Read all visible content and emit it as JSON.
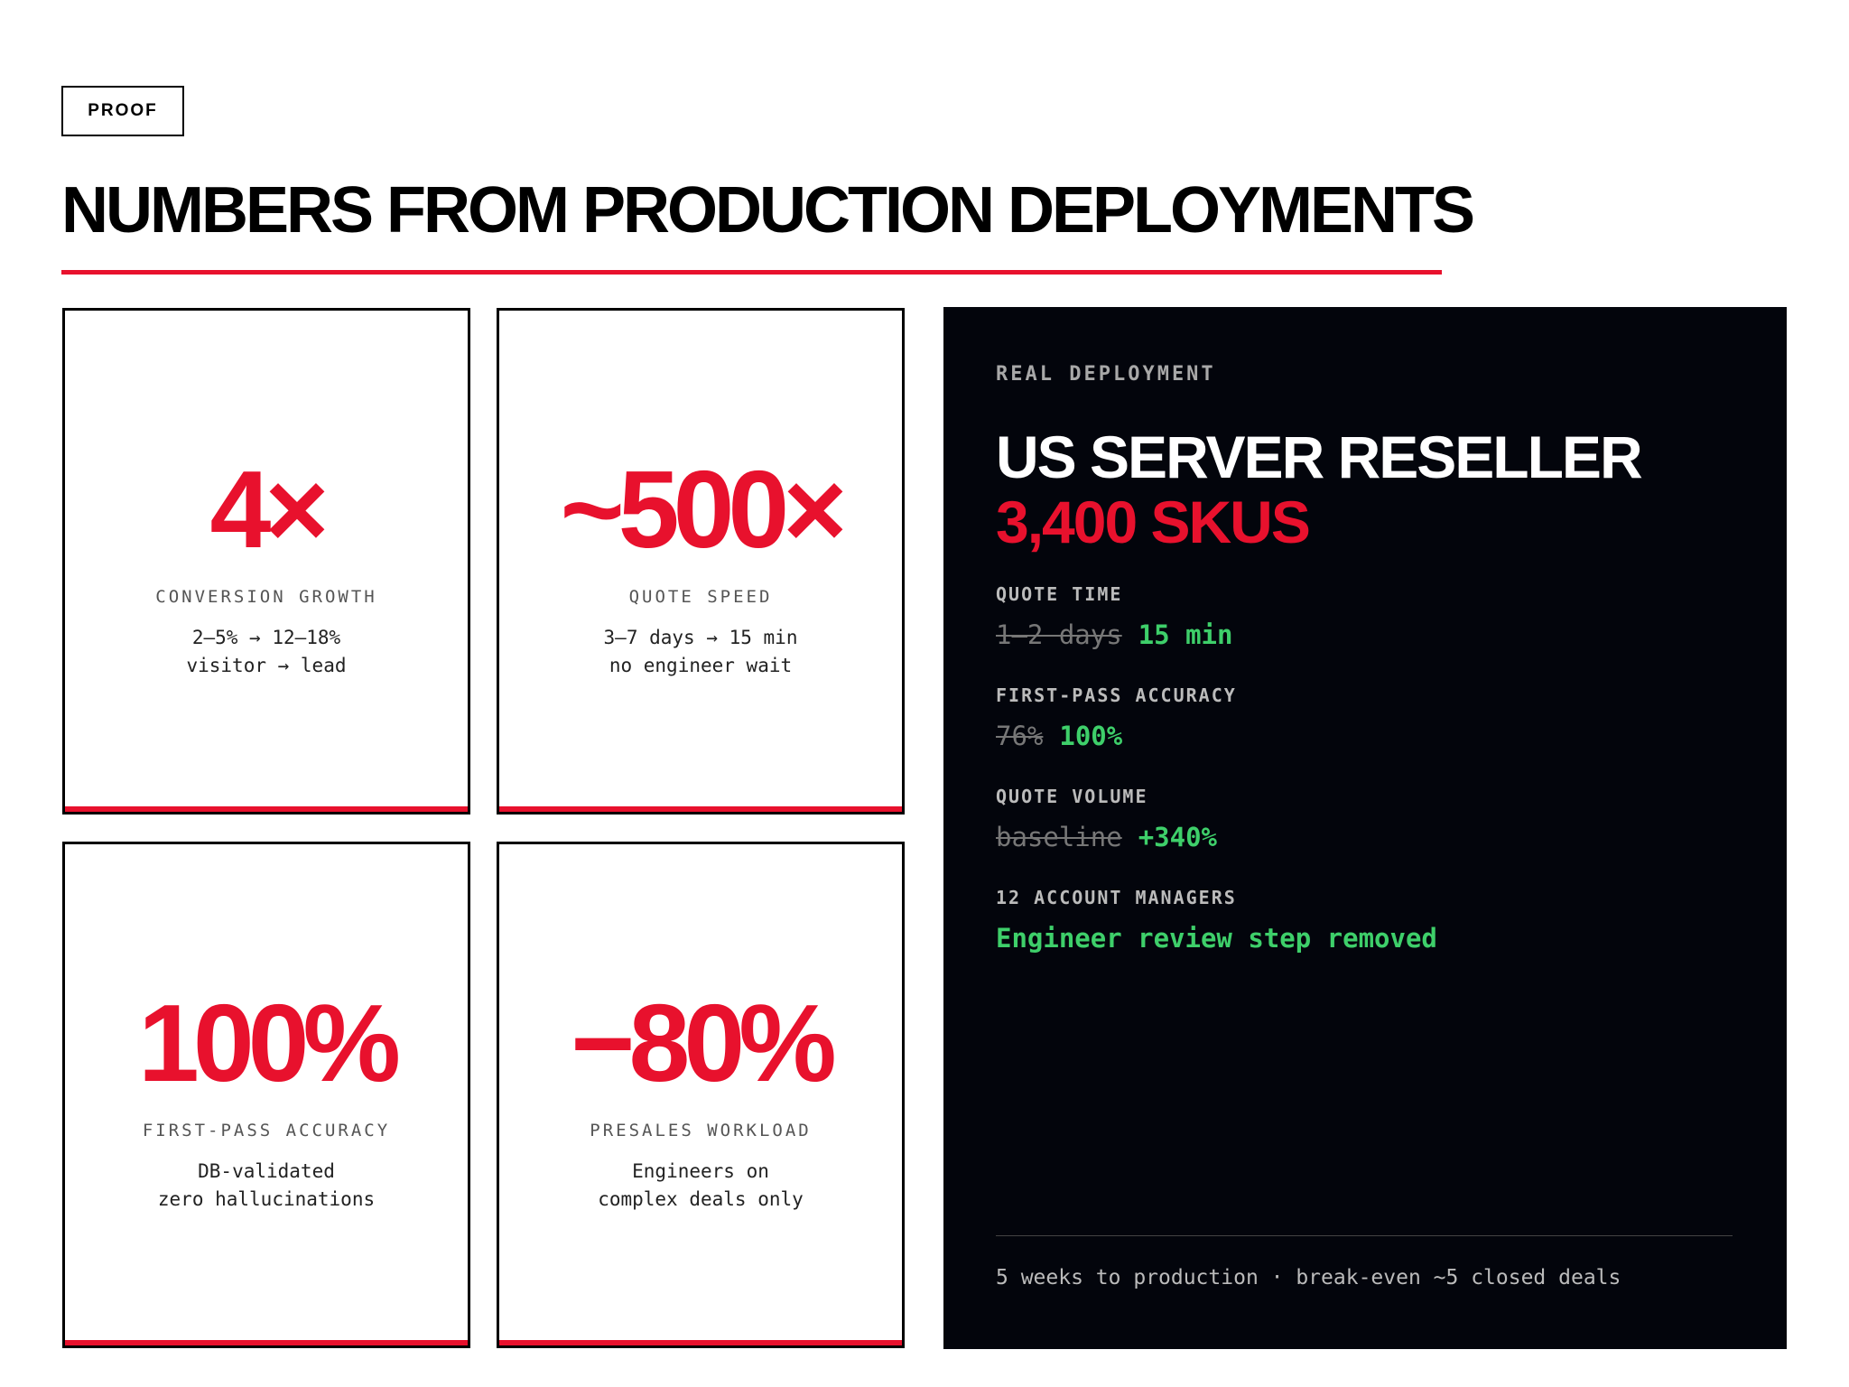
{
  "header": {
    "badge": "PROOF",
    "title": "NUMBERS FROM PRODUCTION DEPLOYMENTS"
  },
  "cards": [
    {
      "value": "4×",
      "label": "CONVERSION GROWTH",
      "lines": [
        "2–5% → 12–18%",
        "visitor → lead"
      ]
    },
    {
      "value": "~500×",
      "label": "QUOTE SPEED",
      "lines": [
        "3–7 days → 15 min",
        "no engineer wait"
      ]
    },
    {
      "value": "100%",
      "label": "FIRST-PASS ACCURACY",
      "lines": [
        "DB-validated",
        "zero hallucinations"
      ]
    },
    {
      "value": "−80%",
      "label": "PRESALES WORKLOAD",
      "lines": [
        "Engineers on",
        "complex deals only"
      ]
    }
  ],
  "deployment": {
    "eyebrow": "REAL DEPLOYMENT",
    "title": "US SERVER RESELLER",
    "subtitle": "3,400 SKUS",
    "metrics": [
      {
        "label": "QUOTE TIME",
        "old": "1–2 days",
        "new": "15 min"
      },
      {
        "label": "FIRST-PASS ACCURACY",
        "old": "76%",
        "new": "100%"
      },
      {
        "label": "QUOTE VOLUME",
        "old": "baseline",
        "new": "+340%"
      },
      {
        "label": "12 ACCOUNT MANAGERS",
        "new": "Engineer review step removed"
      }
    ],
    "footer": "5 weeks to production · break-even ~5 closed deals"
  }
}
